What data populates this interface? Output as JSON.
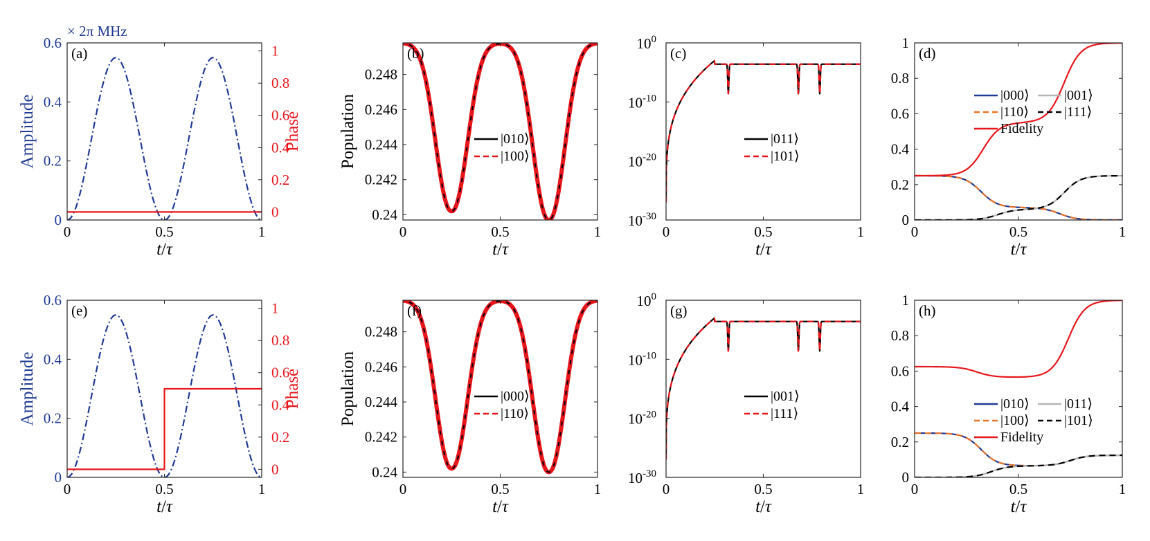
{
  "figure": {
    "unit_note": "× 2π MHz"
  },
  "chart_data": [
    {
      "id": "a",
      "type": "line",
      "label": "(a)",
      "xlabel": "t/τ",
      "ylabel": "Amplitude",
      "ylabel_right": "Phase",
      "xlim": [
        0,
        1
      ],
      "ylim": [
        0,
        0.6
      ],
      "ylim_right": [
        -0.05,
        1.05
      ],
      "xticks": [
        "0",
        "0.5",
        "1"
      ],
      "yticks": [
        "0",
        "0.2",
        "0.4",
        "0.6"
      ],
      "yticks_right": [
        "0",
        "0.2",
        "0.4",
        "0.6",
        "0.8",
        "1"
      ],
      "series": [
        {
          "axis": "left",
          "color": "#1f3a93",
          "dash": "dashdot",
          "shape": "sin2x2",
          "peak": 0.55
        },
        {
          "axis": "right",
          "color": "#e8161b",
          "dash": "solid",
          "x": [
            0,
            1
          ],
          "y": [
            0,
            0
          ]
        }
      ]
    },
    {
      "id": "b",
      "type": "line",
      "label": "(b)",
      "xlabel": "t/τ",
      "ylabel": "Population",
      "xlim": [
        0,
        1
      ],
      "ylim": [
        0.2397,
        0.2498
      ],
      "xticks": [
        "0",
        "0.5",
        "1"
      ],
      "yticks": [
        "0.24",
        "0.242",
        "0.244",
        "0.246",
        "0.248"
      ],
      "ytick_values": [
        0.24,
        0.242,
        0.244,
        0.246,
        0.248
      ],
      "dips": [
        {
          "center": 0.25,
          "min": 0.2402
        },
        {
          "center": 0.75,
          "min": 0.2397
        }
      ],
      "top": 0.2498,
      "series": [
        {
          "name": "|010⟩",
          "color": "#000000",
          "dash": "solid"
        },
        {
          "name": "|100⟩",
          "color": "#e8161b",
          "dash": "dashed"
        }
      ]
    },
    {
      "id": "c",
      "type": "line",
      "label": "(c)",
      "xlabel": "t/τ",
      "ylabel": "",
      "yscale": "log",
      "xlim": [
        0,
        1
      ],
      "ylim": [
        1e-30,
        1
      ],
      "xticks": [
        "0",
        "0.5",
        "1"
      ],
      "yticks": [
        {
          "base": "10",
          "exp": "0"
        },
        {
          "base": "10",
          "exp": "-10"
        },
        {
          "base": "10",
          "exp": "-20"
        },
        {
          "base": "10",
          "exp": "-30"
        }
      ],
      "notches": [
        0.32,
        0.68,
        0.79
      ],
      "series": [
        {
          "name": "|011⟩",
          "color": "#000000",
          "dash": "solid"
        },
        {
          "name": "|101⟩",
          "color": "#e8161b",
          "dash": "dashed"
        }
      ]
    },
    {
      "id": "d",
      "type": "line",
      "label": "(d)",
      "xlabel": "t/τ",
      "ylabel": "",
      "xlim": [
        0,
        1
      ],
      "ylim": [
        0,
        1
      ],
      "xticks": [
        "0",
        "0.5",
        "1"
      ],
      "yticks": [
        "0",
        "0.2",
        "0.4",
        "0.6",
        "0.8",
        "1"
      ],
      "series": [
        {
          "name": "|000⟩",
          "color": "#1f3a93",
          "dash": "solid"
        },
        {
          "name": "|001⟩",
          "color": "#b5b5b5",
          "dash": "solid"
        },
        {
          "name": "|110⟩",
          "color": "#e8732a",
          "dash": "dashed"
        },
        {
          "name": "|111⟩",
          "color": "#000000",
          "dash": "dashed"
        },
        {
          "name": "Fidelity",
          "color": "#e8161b",
          "dash": "solid"
        }
      ]
    },
    {
      "id": "e",
      "type": "line",
      "label": "(e)",
      "xlabel": "t/τ",
      "ylabel": "Amplitude",
      "ylabel_right": "Phase",
      "xlim": [
        0,
        1
      ],
      "ylim": [
        0,
        0.6
      ],
      "ylim_right": [
        -0.05,
        1.05
      ],
      "xticks": [
        "0",
        "0.5",
        "1"
      ],
      "yticks": [
        "0",
        "0.2",
        "0.4",
        "0.6"
      ],
      "yticks_right": [
        "0",
        "0.2",
        "0.4",
        "0.6",
        "0.8",
        "1"
      ],
      "series": [
        {
          "axis": "left",
          "color": "#1f3a93",
          "dash": "dashdot",
          "shape": "sin2x2",
          "peak": 0.55
        },
        {
          "axis": "right",
          "color": "#e8161b",
          "dash": "solid",
          "x": [
            0,
            0.5,
            0.5,
            1
          ],
          "y": [
            0,
            0,
            0.5,
            0.5
          ]
        }
      ]
    },
    {
      "id": "f",
      "type": "line",
      "label": "(f)",
      "xlabel": "t/τ",
      "ylabel": "Population",
      "xlim": [
        0,
        1
      ],
      "ylim": [
        0.2397,
        0.2498
      ],
      "xticks": [
        "0",
        "0.5",
        "1"
      ],
      "yticks": [
        "0.24",
        "0.242",
        "0.244",
        "0.246",
        "0.248"
      ],
      "ytick_values": [
        0.24,
        0.242,
        0.244,
        0.246,
        0.248
      ],
      "dips": [
        {
          "center": 0.25,
          "min": 0.2402
        },
        {
          "center": 0.75,
          "min": 0.24
        }
      ],
      "top": 0.2498,
      "series": [
        {
          "name": "|000⟩",
          "color": "#000000",
          "dash": "solid"
        },
        {
          "name": "|110⟩",
          "color": "#e8161b",
          "dash": "dashed"
        }
      ]
    },
    {
      "id": "g",
      "type": "line",
      "label": "(g)",
      "xlabel": "t/τ",
      "ylabel": "",
      "yscale": "log",
      "xlim": [
        0,
        1
      ],
      "ylim": [
        1e-30,
        1
      ],
      "xticks": [
        "0",
        "0.5",
        "1"
      ],
      "yticks": [
        {
          "base": "10",
          "exp": "0"
        },
        {
          "base": "10",
          "exp": "-10"
        },
        {
          "base": "10",
          "exp": "-20"
        },
        {
          "base": "10",
          "exp": "-30"
        }
      ],
      "notches": [
        0.32,
        0.68,
        0.79
      ],
      "series": [
        {
          "name": "|001⟩",
          "color": "#000000",
          "dash": "solid"
        },
        {
          "name": "|111⟩",
          "color": "#e8161b",
          "dash": "dashed"
        }
      ]
    },
    {
      "id": "h",
      "type": "line",
      "label": "(h)",
      "xlabel": "t/τ",
      "ylabel": "",
      "xlim": [
        0,
        1
      ],
      "ylim": [
        0,
        1
      ],
      "xticks": [
        "0",
        "0.5",
        "1"
      ],
      "yticks": [
        "0",
        "0.2",
        "0.4",
        "0.6",
        "0.8",
        "1"
      ],
      "series": [
        {
          "name": "|010⟩",
          "color": "#1f3a93",
          "dash": "solid"
        },
        {
          "name": "|011⟩",
          "color": "#b5b5b5",
          "dash": "solid"
        },
        {
          "name": "|100⟩",
          "color": "#e8732a",
          "dash": "dashed"
        },
        {
          "name": "|101⟩",
          "color": "#000000",
          "dash": "dashed"
        },
        {
          "name": "Fidelity",
          "color": "#e8161b",
          "dash": "solid"
        }
      ]
    }
  ]
}
